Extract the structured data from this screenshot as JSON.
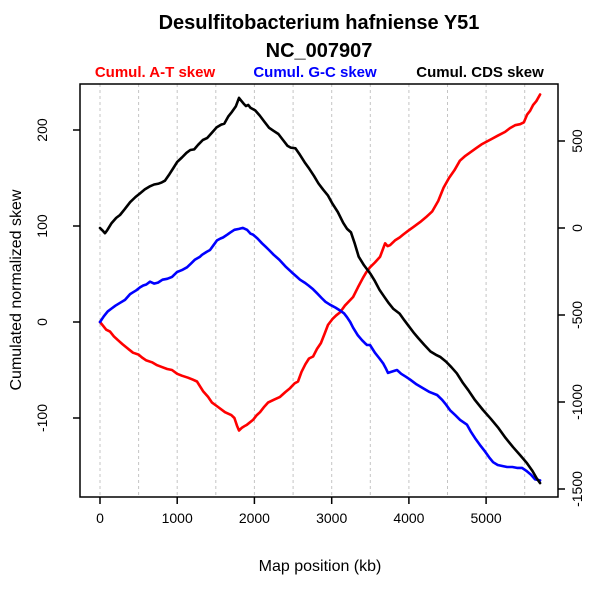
{
  "legend": {
    "items": [
      {
        "label": "Cumul. A-T skew",
        "color": "#ff0000"
      },
      {
        "label": "Cumul. G-C skew",
        "color": "#0000ff"
      },
      {
        "label": "Cumul. CDS skew",
        "color": "#000000"
      }
    ]
  },
  "chart_data": {
    "type": "line",
    "title": "Desulfitobacterium hafniense Y51",
    "subtitle": "NC_007907",
    "grid": true,
    "grid_color": "#c4c4c4",
    "frame_color": "#000000",
    "legend_position": "top",
    "x_axis": {
      "label": "Map position (kb)",
      "unit": "kb",
      "ticks": [
        0,
        1000,
        2000,
        3000,
        4000,
        5000
      ],
      "gridlines": [
        0,
        500,
        1000,
        1500,
        2000,
        2500,
        3000,
        3500,
        4000,
        4500,
        5000,
        5500
      ],
      "range": [
        -259,
        5931
      ]
    },
    "y_axis_left": {
      "label": "Cumulated normalized skew",
      "ticks": [
        -100,
        0,
        100,
        200
      ],
      "range": [
        -182.3,
        247.9
      ]
    },
    "y_axis_right": {
      "label": "",
      "ticks": [
        -1500,
        -1000,
        -500,
        0,
        500
      ],
      "range": [
        -1546,
        827.6
      ]
    },
    "series": [
      {
        "id": "at-skew",
        "name": "Cumul. A-T skew",
        "color": "#ff0000",
        "axis": "left",
        "points": [
          [
            0,
            0
          ],
          [
            40,
            -4
          ],
          [
            80,
            -8
          ],
          [
            129,
            -10
          ],
          [
            180,
            -15
          ],
          [
            233,
            -19
          ],
          [
            290,
            -23
          ],
          [
            350,
            -27
          ],
          [
            427,
            -32
          ],
          [
            500,
            -34
          ],
          [
            544,
            -37
          ],
          [
            600,
            -40
          ],
          [
            673,
            -42
          ],
          [
            740,
            -45
          ],
          [
            803,
            -47
          ],
          [
            870,
            -49
          ],
          [
            932,
            -50
          ],
          [
            1000,
            -54
          ],
          [
            1060,
            -56
          ],
          [
            1139,
            -58
          ],
          [
            1200,
            -60
          ],
          [
            1256,
            -62
          ],
          [
            1334,
            -72
          ],
          [
            1400,
            -78
          ],
          [
            1450,
            -84
          ],
          [
            1520,
            -88
          ],
          [
            1619,
            -94
          ],
          [
            1700,
            -97
          ],
          [
            1740,
            -100
          ],
          [
            1774,
            -108
          ],
          [
            1800,
            -113
          ],
          [
            1840,
            -110
          ],
          [
            1880,
            -108
          ],
          [
            1904,
            -107
          ],
          [
            1981,
            -102
          ],
          [
            2030,
            -97
          ],
          [
            2072,
            -94
          ],
          [
            2120,
            -89
          ],
          [
            2176,
            -84
          ],
          [
            2250,
            -81
          ],
          [
            2331,
            -78
          ],
          [
            2400,
            -73
          ],
          [
            2460,
            -69
          ],
          [
            2520,
            -64
          ],
          [
            2564,
            -62
          ],
          [
            2610,
            -52
          ],
          [
            2660,
            -44
          ],
          [
            2706,
            -38
          ],
          [
            2760,
            -36
          ],
          [
            2810,
            -28
          ],
          [
            2860,
            -22
          ],
          [
            2910,
            -12
          ],
          [
            2953,
            -3
          ],
          [
            3010,
            3
          ],
          [
            3060,
            7
          ],
          [
            3108,
            10
          ],
          [
            3170,
            17
          ],
          [
            3230,
            22
          ],
          [
            3277,
            26
          ],
          [
            3340,
            36
          ],
          [
            3406,
            46
          ],
          [
            3450,
            52
          ],
          [
            3497,
            57
          ],
          [
            3560,
            62
          ],
          [
            3627,
            68
          ],
          [
            3660,
            75
          ],
          [
            3692,
            82
          ],
          [
            3724,
            79
          ],
          [
            3756,
            80
          ],
          [
            3820,
            85
          ],
          [
            3880,
            88
          ],
          [
            3925,
            91
          ],
          [
            3990,
            95
          ],
          [
            4060,
            99
          ],
          [
            4145,
            104
          ],
          [
            4220,
            109
          ],
          [
            4300,
            115
          ],
          [
            4380,
            126
          ],
          [
            4450,
            140
          ],
          [
            4520,
            150
          ],
          [
            4590,
            158
          ],
          [
            4660,
            168
          ],
          [
            4730,
            173
          ],
          [
            4800,
            177
          ],
          [
            4870,
            181
          ],
          [
            4940,
            185
          ],
          [
            5010,
            188
          ],
          [
            5080,
            191
          ],
          [
            5150,
            194
          ],
          [
            5246,
            198
          ],
          [
            5310,
            202
          ],
          [
            5375,
            205
          ],
          [
            5440,
            206
          ],
          [
            5490,
            208
          ],
          [
            5531,
            216
          ],
          [
            5570,
            220
          ],
          [
            5609,
            226
          ],
          [
            5650,
            230
          ],
          [
            5699,
            237
          ]
        ]
      },
      {
        "id": "gc-skew",
        "name": "Cumul. G-C skew",
        "color": "#0000ff",
        "axis": "left",
        "points": [
          [
            0,
            0
          ],
          [
            50,
            6
          ],
          [
            100,
            11
          ],
          [
            150,
            14
          ],
          [
            200,
            17
          ],
          [
            260,
            20
          ],
          [
            324,
            23
          ],
          [
            390,
            29
          ],
          [
            430,
            31
          ],
          [
            470,
            33
          ],
          [
            518,
            36
          ],
          [
            560,
            38
          ],
          [
            600,
            39
          ],
          [
            647,
            42
          ],
          [
            700,
            40
          ],
          [
            751,
            41
          ],
          [
            810,
            44
          ],
          [
            870,
            45
          ],
          [
            932,
            47
          ],
          [
            997,
            52
          ],
          [
            1060,
            54
          ],
          [
            1127,
            57
          ],
          [
            1180,
            61
          ],
          [
            1230,
            65
          ],
          [
            1295,
            68
          ],
          [
            1321,
            70
          ],
          [
            1380,
            73
          ],
          [
            1424,
            75
          ],
          [
            1470,
            80
          ],
          [
            1515,
            85
          ],
          [
            1560,
            87
          ],
          [
            1593,
            88
          ],
          [
            1650,
            91
          ],
          [
            1684,
            93
          ],
          [
            1740,
            96
          ],
          [
            1800,
            97
          ],
          [
            1850,
            98
          ],
          [
            1904,
            96
          ],
          [
            1950,
            92
          ],
          [
            1981,
            91
          ],
          [
            2040,
            87
          ],
          [
            2098,
            82
          ],
          [
            2150,
            78
          ],
          [
            2189,
            75
          ],
          [
            2250,
            70
          ],
          [
            2320,
            65
          ],
          [
            2400,
            58
          ],
          [
            2480,
            52
          ],
          [
            2550,
            47
          ],
          [
            2590,
            44
          ],
          [
            2650,
            41
          ],
          [
            2700,
            38
          ],
          [
            2760,
            34
          ],
          [
            2810,
            30
          ],
          [
            2870,
            25
          ],
          [
            2920,
            21
          ],
          [
            2979,
            18
          ],
          [
            3050,
            15
          ],
          [
            3108,
            12
          ],
          [
            3160,
            9
          ],
          [
            3199,
            5
          ],
          [
            3240,
            0
          ],
          [
            3277,
            -6
          ],
          [
            3340,
            -14
          ],
          [
            3393,
            -19
          ],
          [
            3430,
            -22
          ],
          [
            3458,
            -24
          ],
          [
            3497,
            -24
          ],
          [
            3560,
            -32
          ],
          [
            3620,
            -38
          ],
          [
            3666,
            -43
          ],
          [
            3700,
            -48
          ],
          [
            3730,
            -53
          ],
          [
            3770,
            -52
          ],
          [
            3810,
            -51
          ],
          [
            3846,
            -50
          ],
          [
            3900,
            -54
          ],
          [
            3960,
            -57
          ],
          [
            4016,
            -60
          ],
          [
            4100,
            -65
          ],
          [
            4184,
            -69
          ],
          [
            4270,
            -73
          ],
          [
            4365,
            -76
          ],
          [
            4430,
            -81
          ],
          [
            4480,
            -86
          ],
          [
            4534,
            -92
          ],
          [
            4600,
            -97
          ],
          [
            4663,
            -102
          ],
          [
            4753,
            -107
          ],
          [
            4800,
            -114
          ],
          [
            4858,
            -121
          ],
          [
            4920,
            -128
          ],
          [
            4987,
            -135
          ],
          [
            5040,
            -141
          ],
          [
            5090,
            -146
          ],
          [
            5150,
            -149
          ],
          [
            5210,
            -150
          ],
          [
            5272,
            -151
          ],
          [
            5340,
            -151
          ],
          [
            5400,
            -152
          ],
          [
            5466,
            -152
          ],
          [
            5520,
            -155
          ],
          [
            5580,
            -159
          ],
          [
            5634,
            -164
          ],
          [
            5699,
            -165
          ]
        ]
      },
      {
        "id": "cds-skew",
        "name": "Cumul. CDS skew",
        "color": "#000000",
        "axis": "right",
        "points": [
          [
            0,
            0
          ],
          [
            40,
            -18
          ],
          [
            65,
            -30
          ],
          [
            95,
            -12
          ],
          [
            150,
            28
          ],
          [
            210,
            58
          ],
          [
            259,
            75
          ],
          [
            320,
            108
          ],
          [
            390,
            148
          ],
          [
            460,
            178
          ],
          [
            520,
            200
          ],
          [
            580,
            222
          ],
          [
            640,
            238
          ],
          [
            700,
            250
          ],
          [
            760,
            255
          ],
          [
            800,
            262
          ],
          [
            840,
            272
          ],
          [
            900,
            310
          ],
          [
            950,
            345
          ],
          [
            1000,
            380
          ],
          [
            1060,
            405
          ],
          [
            1120,
            432
          ],
          [
            1170,
            448
          ],
          [
            1220,
            452
          ],
          [
            1270,
            478
          ],
          [
            1330,
            505
          ],
          [
            1390,
            518
          ],
          [
            1450,
            548
          ],
          [
            1510,
            578
          ],
          [
            1570,
            594
          ],
          [
            1610,
            600
          ],
          [
            1660,
            640
          ],
          [
            1710,
            668
          ],
          [
            1760,
            700
          ],
          [
            1800,
            748
          ],
          [
            1830,
            731
          ],
          [
            1860,
            715
          ],
          [
            1890,
            701
          ],
          [
            1920,
            707
          ],
          [
            1950,
            690
          ],
          [
            2010,
            676
          ],
          [
            2070,
            646
          ],
          [
            2130,
            610
          ],
          [
            2190,
            576
          ],
          [
            2250,
            558
          ],
          [
            2310,
            540
          ],
          [
            2370,
            506
          ],
          [
            2430,
            472
          ],
          [
            2470,
            462
          ],
          [
            2530,
            458
          ],
          [
            2590,
            420
          ],
          [
            2650,
            378
          ],
          [
            2710,
            340
          ],
          [
            2770,
            300
          ],
          [
            2830,
            256
          ],
          [
            2890,
            220
          ],
          [
            2950,
            188
          ],
          [
            3010,
            140
          ],
          [
            3080,
            92
          ],
          [
            3150,
            30
          ],
          [
            3200,
            -5
          ],
          [
            3250,
            -25
          ],
          [
            3300,
            -90
          ],
          [
            3350,
            -165
          ],
          [
            3420,
            -215
          ],
          [
            3500,
            -262
          ],
          [
            3560,
            -305
          ],
          [
            3620,
            -355
          ],
          [
            3680,
            -395
          ],
          [
            3740,
            -432
          ],
          [
            3800,
            -465
          ],
          [
            3880,
            -492
          ],
          [
            3940,
            -530
          ],
          [
            4000,
            -565
          ],
          [
            4060,
            -600
          ],
          [
            4120,
            -632
          ],
          [
            4200,
            -672
          ],
          [
            4280,
            -710
          ],
          [
            4360,
            -731
          ],
          [
            4410,
            -742
          ],
          [
            4480,
            -768
          ],
          [
            4550,
            -800
          ],
          [
            4620,
            -835
          ],
          [
            4700,
            -890
          ],
          [
            4770,
            -932
          ],
          [
            4850,
            -985
          ],
          [
            4960,
            -1046
          ],
          [
            5060,
            -1096
          ],
          [
            5160,
            -1150
          ],
          [
            5250,
            -1205
          ],
          [
            5350,
            -1260
          ],
          [
            5440,
            -1305
          ],
          [
            5530,
            -1352
          ],
          [
            5600,
            -1396
          ],
          [
            5650,
            -1435
          ],
          [
            5699,
            -1466
          ]
        ]
      }
    ]
  }
}
